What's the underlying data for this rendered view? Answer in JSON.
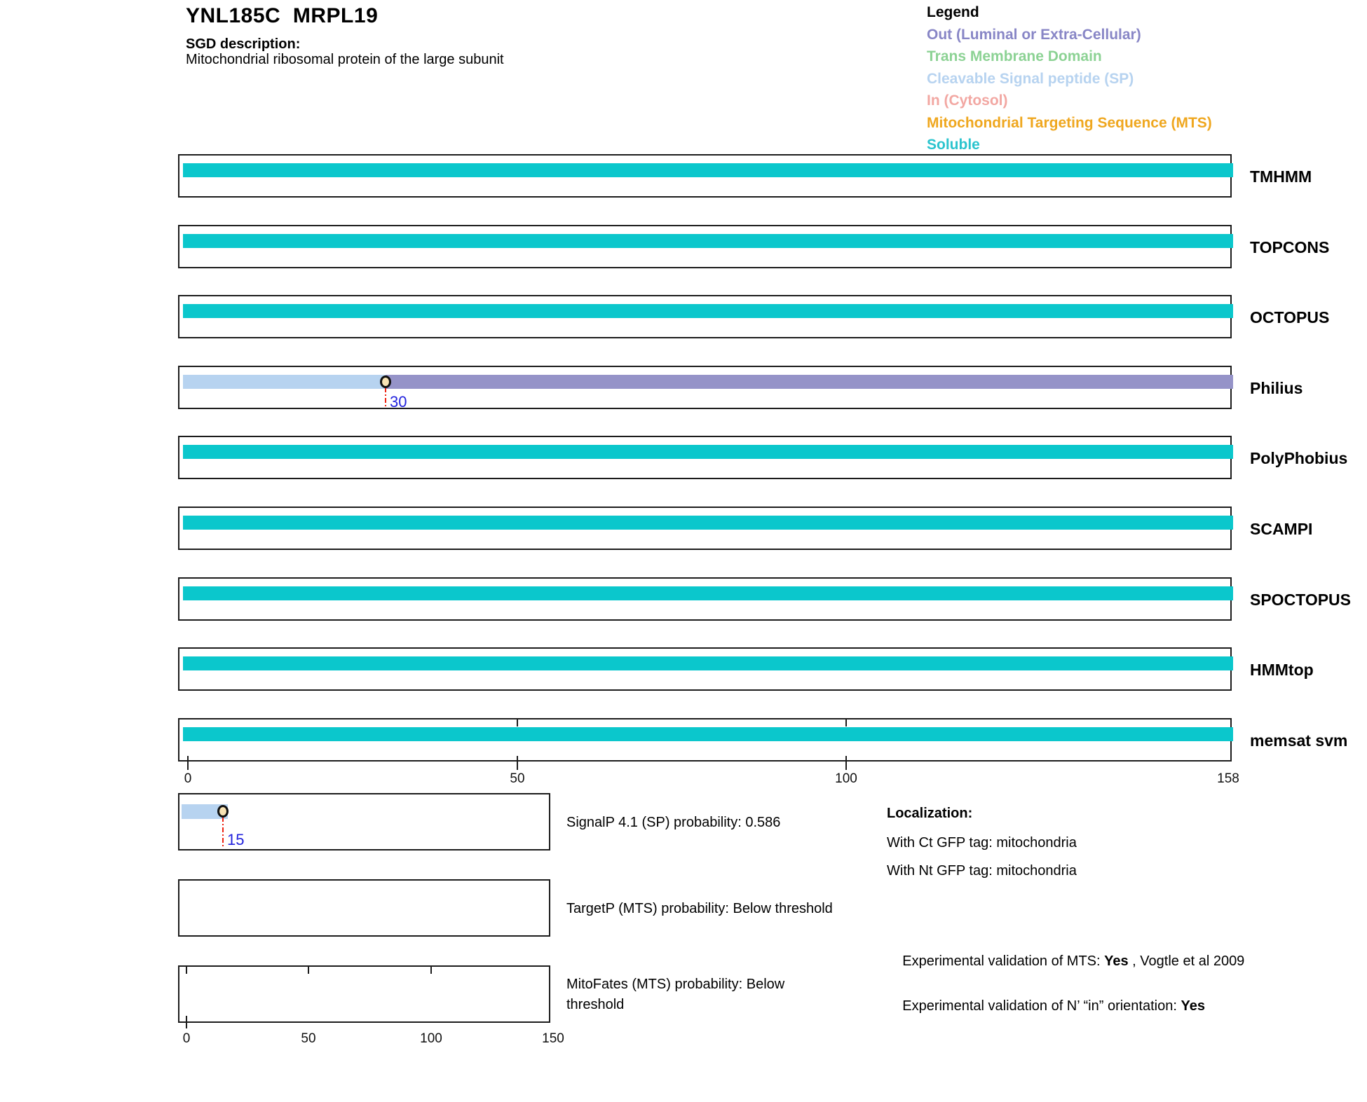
{
  "header": {
    "title": "YNL185C  MRPL19",
    "sgd_label": "SGD description:",
    "sgd_description": "Mitochondrial ribosomal protein of the large subunit"
  },
  "legend": {
    "title": "Legend",
    "items": [
      {
        "label": "Out (Luminal or Extra-Cellular)",
        "color": "#8886C6"
      },
      {
        "label": "Trans Membrane Domain",
        "color": "#8CD294"
      },
      {
        "label": "Cleavable Signal peptide (SP)",
        "color": "#B7D3F0"
      },
      {
        "label": "In (Cytosol)",
        "color": "#F2A7A2"
      },
      {
        "label": "Mitochondrial Targeting Sequence (MTS)",
        "color": "#EFA71F"
      },
      {
        "label": "Soluble",
        "color": "#2BC4CE"
      }
    ]
  },
  "chart_data": {
    "type": "bar",
    "sequence_length": 158,
    "axis_range": [
      0,
      158
    ],
    "grid": false,
    "sequence_axis_ticks": [
      0,
      50,
      100,
      158
    ],
    "probability_axis_ticks": [
      0,
      50,
      100,
      150
    ],
    "region_colors": {
      "Soluble": "#0BC7CC",
      "Cleavable Signal peptide (SP)": "#B7D3F0",
      "Out (Luminal or Extra-Cellular)": "#9593C8",
      "Trans Membrane Domain": "#8CD294",
      "In (Cytosol)": "#F2A7A2",
      "Mitochondrial Targeting Sequence (MTS)": "#EFA71F"
    },
    "tracks": [
      {
        "name": "TMHMM",
        "segments": [
          {
            "type": "Soluble",
            "start": 0,
            "end": 158
          }
        ]
      },
      {
        "name": "TOPCONS",
        "segments": [
          {
            "type": "Soluble",
            "start": 0,
            "end": 158
          }
        ]
      },
      {
        "name": "OCTOPUS",
        "segments": [
          {
            "type": "Soluble",
            "start": 0,
            "end": 158
          }
        ]
      },
      {
        "name": "Philius",
        "segments": [
          {
            "type": "Cleavable Signal peptide (SP)",
            "start": 0,
            "end": 30
          },
          {
            "type": "Out (Luminal or Extra-Cellular)",
            "start": 30,
            "end": 158
          }
        ],
        "marker": {
          "position": 30,
          "label": "30"
        }
      },
      {
        "name": "PolyPhobius",
        "segments": [
          {
            "type": "Soluble",
            "start": 0,
            "end": 158
          }
        ]
      },
      {
        "name": "SCAMPI",
        "segments": [
          {
            "type": "Soluble",
            "start": 0,
            "end": 158
          }
        ]
      },
      {
        "name": "SPOCTOPUS",
        "segments": [
          {
            "type": "Soluble",
            "start": 0,
            "end": 158
          }
        ]
      },
      {
        "name": "HMMtop",
        "segments": [
          {
            "type": "Soluble",
            "start": 0,
            "end": 158
          }
        ]
      },
      {
        "name": "memsat svm",
        "segments": [
          {
            "type": "Soluble",
            "start": 0,
            "end": 158
          }
        ],
        "show_axis": true
      }
    ],
    "probability_plots": [
      {
        "name": "SignalP",
        "label_lines": [
          "SignalP 4.1 (SP) probability: 0.586"
        ],
        "segments": [
          {
            "type": "Cleavable Signal peptide (SP)",
            "start": 0,
            "end": 17
          }
        ],
        "marker": {
          "position": 15,
          "label": "15"
        }
      },
      {
        "name": "TargetP",
        "label_lines": [
          "TargetP (MTS) probability: Below threshold"
        ],
        "segments": []
      },
      {
        "name": "MitoFates",
        "label_lines": [
          "MitoFates (MTS) probability: Below",
          "threshold"
        ],
        "segments": [],
        "show_axis": true
      }
    ]
  },
  "results": {
    "localization_title": "Localization:",
    "ct_gfp": "With Ct GFP tag: mitochondria",
    "nt_gfp": "With Nt GFP tag: mitochondria",
    "mts_validation_prefix": "Experimental validation of MTS: ",
    "mts_validation_value": "Yes",
    "mts_validation_suffix": " , Vogtle et al 2009",
    "orientation_prefix": "Experimental validation of N’ “in” orientation: ",
    "orientation_value": "Yes"
  },
  "marker_style": {
    "line_color": "#EE2211",
    "label_color": "#2222DD",
    "circle_fill": "#F8E3B4"
  }
}
